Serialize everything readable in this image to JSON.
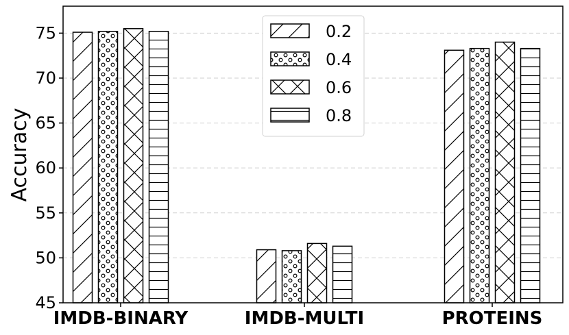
{
  "chart_data": {
    "type": "bar",
    "categories": [
      "IMDB-BINARY",
      "IMDB-MULTI",
      "PROTEINS"
    ],
    "series": [
      {
        "name": "0.2",
        "values": [
          75.1,
          50.9,
          73.1
        ],
        "pattern": "diagonal"
      },
      {
        "name": "0.4",
        "values": [
          75.2,
          50.8,
          73.3
        ],
        "pattern": "circles"
      },
      {
        "name": "0.6",
        "values": [
          75.5,
          51.6,
          74.0
        ],
        "pattern": "crosshatch"
      },
      {
        "name": "0.8",
        "values": [
          75.2,
          51.3,
          73.3
        ],
        "pattern": "horizontal"
      }
    ],
    "title": "",
    "xlabel": "",
    "ylabel": "Accuracy",
    "ylim": [
      45,
      78
    ],
    "yticks": [
      45,
      50,
      55,
      60,
      65,
      70,
      75
    ],
    "grid": "horizontal dashed",
    "legend_position": "top-center"
  }
}
